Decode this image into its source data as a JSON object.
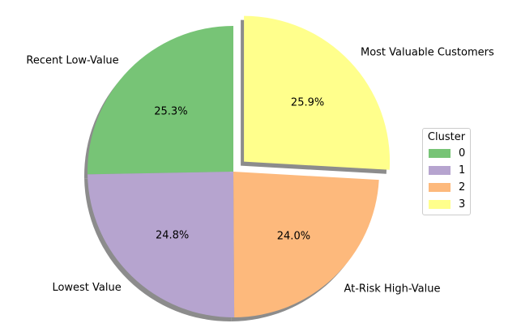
{
  "chart_data": {
    "type": "pie",
    "categories": [
      "Recent Low-Value",
      "Lowest Value",
      "At-Risk High-Value",
      "Most Valuable Customers"
    ],
    "values": [
      25.3,
      24.8,
      24.0,
      25.9
    ],
    "percent_labels": [
      "25.3%",
      "24.8%",
      "24.0%",
      "25.9%"
    ],
    "colors": [
      "#77c476",
      "#b6a4cf",
      "#fdb97c",
      "#ffff8c"
    ],
    "exploded": [
      false,
      false,
      false,
      true
    ],
    "shadow": true,
    "legend": {
      "title": "Cluster",
      "placement": "right",
      "entries": [
        "0",
        "1",
        "2",
        "3"
      ]
    }
  }
}
